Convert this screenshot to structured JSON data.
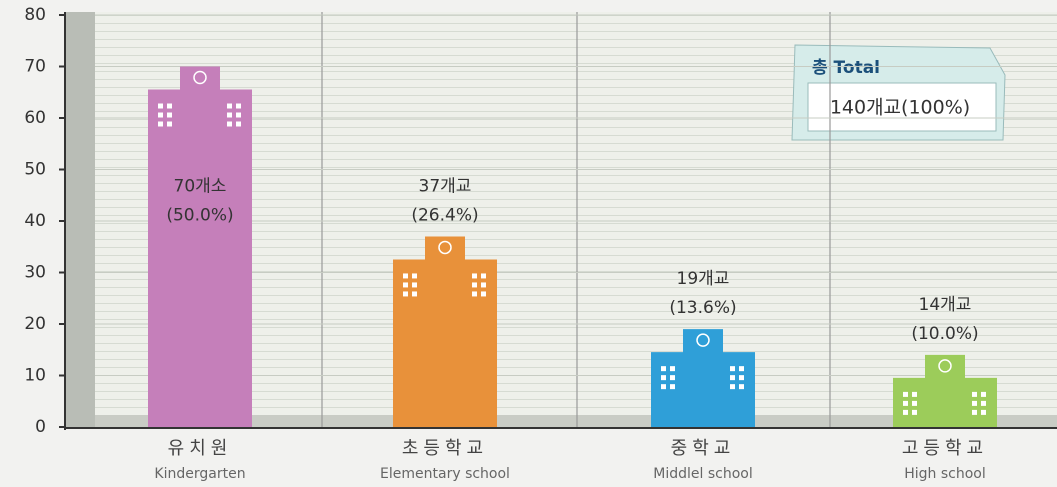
{
  "chart_data": {
    "type": "bar",
    "categories": [
      "유치원",
      "초등학교",
      "중학교",
      "고등학교"
    ],
    "categories_en": [
      "Kindergarten",
      "Elementary school",
      "Middlel school",
      "High school"
    ],
    "values": [
      70,
      37,
      19,
      14
    ],
    "value_labels": [
      "70개소",
      "37개교",
      "19개교",
      "14개교"
    ],
    "share_labels": [
      "(50.0%)",
      "(26.4%)",
      "(13.6%)",
      "(10.0%)"
    ],
    "colors": [
      "#c57fba",
      "#e8913a",
      "#2f9fd8",
      "#9ccc5a"
    ],
    "ylim": [
      0,
      80
    ],
    "yticks": [
      0,
      10,
      20,
      30,
      40,
      50,
      60,
      70,
      80
    ],
    "grid": true,
    "annotations": {
      "total_title": "총 Total",
      "total_value": "140개교(100%)"
    }
  }
}
